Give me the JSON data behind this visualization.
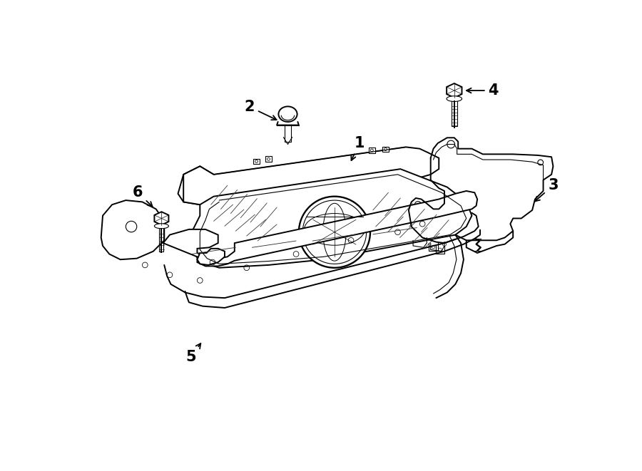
{
  "bg_color": "#ffffff",
  "line_color": "#000000",
  "lw": 1.4,
  "tlw": 0.8
}
